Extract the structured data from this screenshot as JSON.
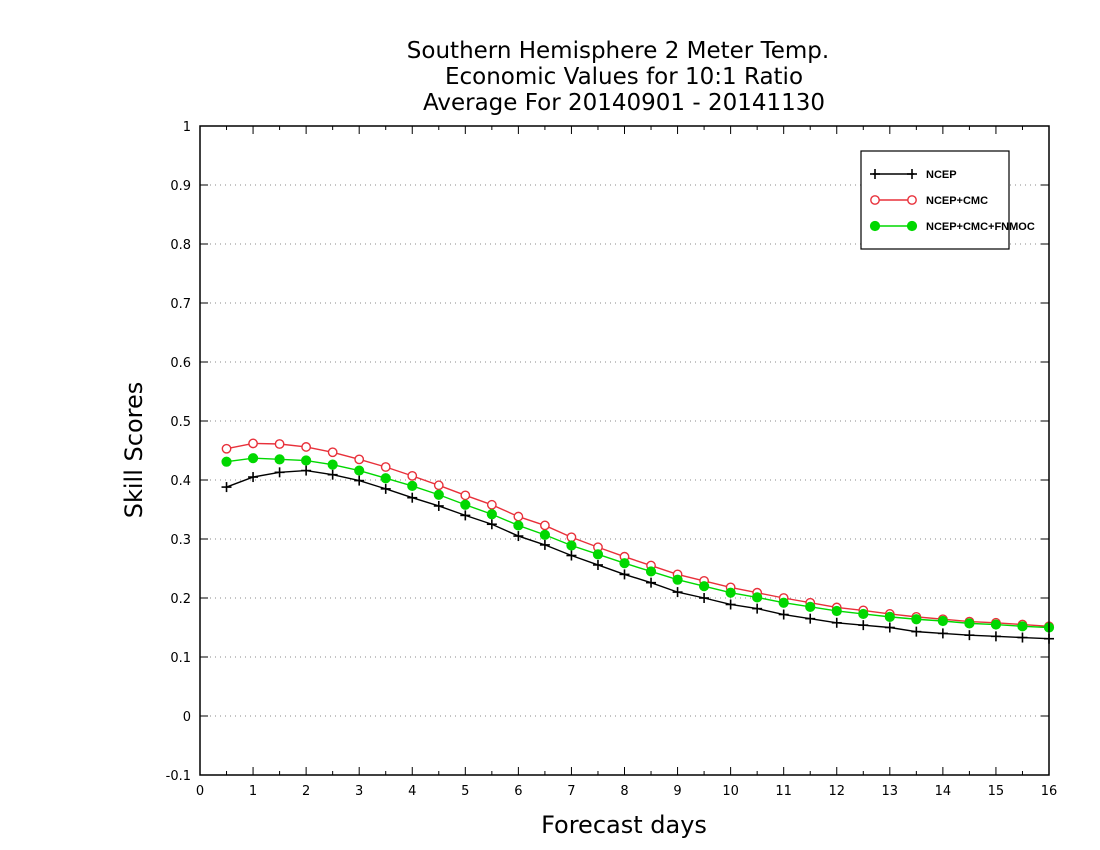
{
  "chart_data": {
    "type": "line",
    "title": [
      "Southern Hemisphere 2 Meter Temp.",
      "Economic Values for 10:1 Ratio",
      "Average For 20140901 - 20141130"
    ],
    "xlabel": "Forecast days",
    "ylabel": "Skill Scores",
    "xlim": [
      0,
      16
    ],
    "ylim": [
      -0.1,
      1
    ],
    "xticks": [
      "0",
      "1",
      "2",
      "3",
      "4",
      "5",
      "6",
      "7",
      "8",
      "9",
      "10",
      "11",
      "12",
      "13",
      "14",
      "15",
      "16"
    ],
    "yticks": [
      "-0.1",
      "0",
      "0.1",
      "0.2",
      "0.3",
      "0.4",
      "0.5",
      "0.6",
      "0.7",
      "0.8",
      "0.9",
      "1"
    ],
    "grid": "horizontal-dotted",
    "legend_position": "top-right",
    "x": [
      0.5,
      1,
      1.5,
      2,
      2.5,
      3,
      3.5,
      4,
      4.5,
      5,
      5.5,
      6,
      6.5,
      7,
      7.5,
      8,
      8.5,
      9,
      9.5,
      10,
      10.5,
      11,
      11.5,
      12,
      12.5,
      13,
      13.5,
      14,
      14.5,
      15,
      15.5,
      16
    ],
    "series": [
      {
        "name": "NCEP",
        "color": "#000000",
        "marker": "plus",
        "values": [
          0.388,
          0.405,
          0.413,
          0.416,
          0.409,
          0.399,
          0.385,
          0.37,
          0.356,
          0.34,
          0.325,
          0.305,
          0.29,
          0.272,
          0.256,
          0.24,
          0.226,
          0.21,
          0.2,
          0.189,
          0.182,
          0.172,
          0.165,
          0.158,
          0.154,
          0.15,
          0.143,
          0.14,
          0.137,
          0.135,
          0.133,
          0.131
        ]
      },
      {
        "name": "NCEP+CMC",
        "color": "#e8303a",
        "marker": "open-circle",
        "values": [
          0.453,
          0.462,
          0.461,
          0.456,
          0.447,
          0.435,
          0.422,
          0.407,
          0.391,
          0.374,
          0.358,
          0.338,
          0.323,
          0.303,
          0.286,
          0.27,
          0.255,
          0.24,
          0.229,
          0.218,
          0.209,
          0.2,
          0.192,
          0.184,
          0.179,
          0.173,
          0.168,
          0.164,
          0.16,
          0.158,
          0.155,
          0.152
        ]
      },
      {
        "name": "NCEP+CMC+FNMOC",
        "color": "#00d800",
        "marker": "filled-circle",
        "values": [
          0.431,
          0.437,
          0.435,
          0.433,
          0.426,
          0.416,
          0.403,
          0.39,
          0.375,
          0.358,
          0.342,
          0.323,
          0.307,
          0.289,
          0.274,
          0.259,
          0.245,
          0.231,
          0.22,
          0.209,
          0.201,
          0.192,
          0.185,
          0.178,
          0.173,
          0.168,
          0.164,
          0.161,
          0.157,
          0.155,
          0.152,
          0.15
        ]
      }
    ]
  }
}
